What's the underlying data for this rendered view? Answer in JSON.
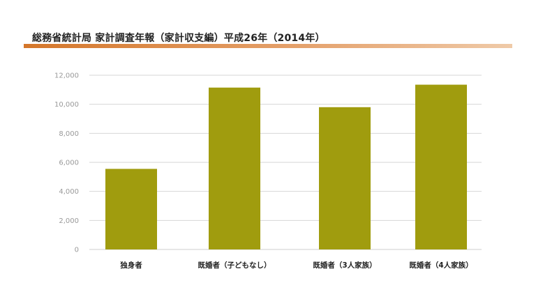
{
  "header": {
    "title": "総務省統計局 家計調査年報（家計収支編）平成26年（2014年）"
  },
  "chart_data": {
    "type": "bar",
    "title": "総務省統計局 家計調査年報（家計収支編）平成26年（2014年）",
    "xlabel": "",
    "ylabel": "",
    "categories": [
      "独身者",
      "既婚者（子どもなし）",
      "既婚者（3人家族）",
      "既婚者（4人家族）"
    ],
    "values": [
      5550,
      11150,
      9800,
      11350
    ],
    "ylim": [
      0,
      12000
    ],
    "yticks": [
      0,
      2000,
      4000,
      6000,
      8000,
      10000,
      12000
    ],
    "ytick_labels": [
      "0",
      "2,000",
      "4,000",
      "6,000",
      "8,000",
      "10,000",
      "12,000"
    ],
    "grid": true,
    "legend": "none",
    "colors": {
      "bar": "#a09c0e",
      "grid": "#d6d6d6",
      "accent": "#d4762a"
    }
  }
}
